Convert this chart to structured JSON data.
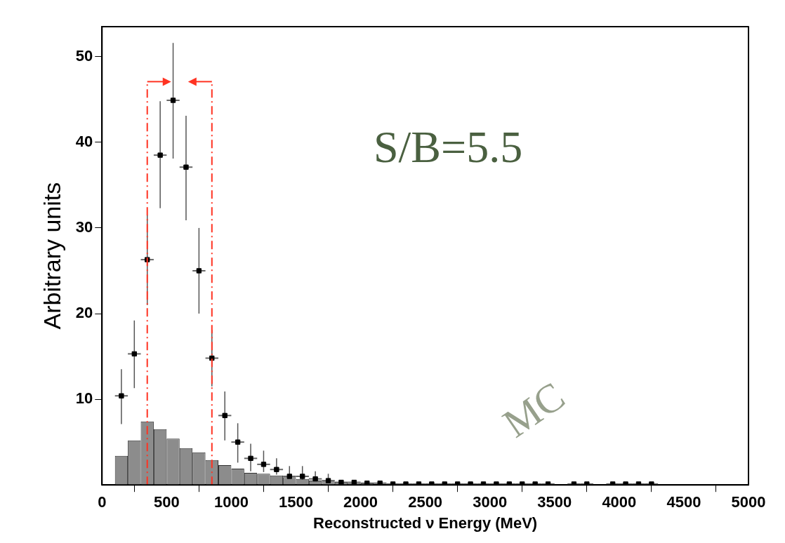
{
  "chart_data": {
    "type": "histogram",
    "xlabel": "Reconstructed ν Energy (MeV)",
    "ylabel": "Arbitrary units",
    "xlim": [
      0,
      5000
    ],
    "xticks": [
      0,
      500,
      1000,
      1500,
      2000,
      2500,
      3000,
      3500,
      4000,
      4500,
      5000
    ],
    "ylim": [
      0,
      53.5
    ],
    "yticks": [
      10,
      20,
      30,
      40,
      50
    ],
    "grid": false,
    "legend": false,
    "color": "#8c8c8c",
    "bins": [
      100,
      200,
      300,
      400,
      500,
      600,
      700,
      800,
      900,
      1000,
      1100,
      1200,
      1300,
      1400,
      1500,
      1600,
      1700,
      1800,
      1900,
      2000,
      2100
    ],
    "values": [
      3.4,
      5.2,
      7.4,
      6.5,
      5.4,
      4.3,
      3.8,
      2.9,
      2.3,
      1.9,
      1.4,
      1.3,
      1.1,
      0.9,
      0.7,
      0.5,
      0.4,
      0.3,
      0.2,
      0.2
    ],
    "series": [
      {
        "type": "scatter",
        "color": "#000000",
        "marker": "square",
        "x": [
          150,
          250,
          350,
          450,
          550,
          650,
          750,
          850,
          950,
          1050,
          1150,
          1250,
          1350,
          1450,
          1550,
          1650,
          1750,
          1850,
          1950,
          2050,
          2150,
          2250,
          2350,
          2450,
          2550,
          2650,
          2750,
          2850,
          2950,
          3050,
          3150,
          3250,
          3350,
          3450,
          3550,
          3650,
          3750,
          3850,
          3950,
          4050,
          4150,
          4250
        ],
        "values": [
          10.4,
          15.3,
          26.3,
          38.5,
          44.9,
          37.1,
          25.0,
          14.8,
          8.1,
          5.0,
          3.1,
          2.4,
          1.8,
          1.0,
          1.0,
          0.7,
          0.5,
          0.3,
          0.3,
          0.2,
          0.2,
          0.1,
          0.1,
          0.1,
          0.1,
          0.1,
          0.1,
          0.1,
          0.1,
          0.1,
          0.1,
          0.1,
          0.1,
          0.1,
          null,
          0.1,
          0.1,
          null,
          0.1,
          0.1,
          0.1,
          0.1
        ],
        "errors": [
          [
            7.1,
            13.5
          ],
          [
            11.3,
            19.2
          ],
          [
            21.0,
            31.5
          ],
          [
            32.3,
            44.8
          ],
          [
            38.1,
            51.6
          ],
          [
            30.9,
            43.1
          ],
          [
            20.0,
            30.0
          ],
          [
            11.5,
            18.1
          ],
          [
            5.2,
            10.9
          ],
          [
            2.6,
            7.2
          ],
          [
            1.6,
            4.8
          ],
          [
            1.5,
            4.0
          ],
          [
            1.2,
            3.1
          ],
          [
            0.2,
            2.2
          ],
          [
            0.2,
            2.2
          ],
          [
            0.1,
            1.6
          ],
          [
            0.1,
            1.3
          ],
          null,
          null,
          null,
          null,
          null,
          null,
          null,
          null,
          null,
          null,
          null,
          null,
          null,
          null,
          null,
          null,
          null,
          null,
          null,
          null,
          null,
          null,
          null,
          null,
          null
        ],
        "xerrors": [
          50,
          50,
          50,
          50,
          50,
          50,
          50,
          50,
          50,
          50,
          50,
          50,
          50,
          50,
          50,
          50,
          50,
          50,
          50,
          50,
          50,
          50,
          50,
          50,
          50,
          50,
          50,
          50,
          50,
          50,
          50,
          50,
          50,
          50,
          null,
          50,
          50,
          null,
          50,
          50,
          50,
          50
        ]
      }
    ],
    "ref_lines": [
      {
        "axis": "x",
        "value": 350,
        "color": "#ff3322",
        "line_style": "dashed"
      },
      {
        "axis": "x",
        "value": 850,
        "color": "#ff3322",
        "line_style": "dashed"
      }
    ],
    "annotations": [
      "S/B=5.5",
      "MC"
    ]
  }
}
